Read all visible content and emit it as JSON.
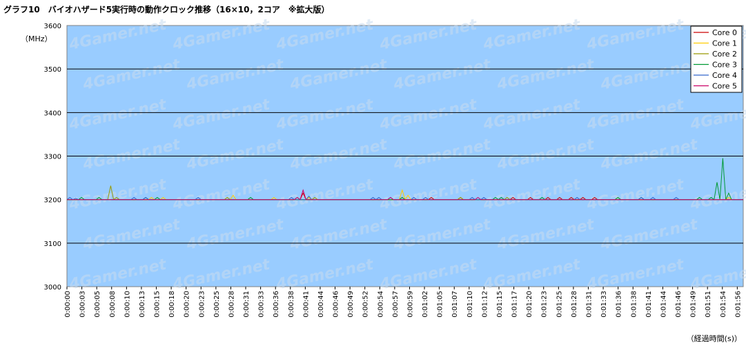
{
  "chart_data": {
    "type": "line",
    "title": "グラフ10　バイオハザード5実行時の動作クロック推移（16×10，2コア　※拡大版）",
    "ylabel": "（MHz）",
    "xlabel": "（経過時間(s)）",
    "ylim": [
      3000,
      3600
    ],
    "yticks": [
      3000,
      3100,
      3200,
      3300,
      3400,
      3500,
      3600
    ],
    "xticks": [
      "0:00:00",
      "0:00:03",
      "0:00:05",
      "0:00:08",
      "0:00:10",
      "0:00:13",
      "0:00:15",
      "0:00:18",
      "0:00:20",
      "0:00:23",
      "0:00:25",
      "0:00:28",
      "0:00:31",
      "0:00:33",
      "0:00:36",
      "0:00:38",
      "0:00:41",
      "0:00:44",
      "0:00:46",
      "0:00:49",
      "0:00:52",
      "0:00:54",
      "0:00:57",
      "0:00:59",
      "0:01:02",
      "0:01:05",
      "0:01:07",
      "0:01:10",
      "0:01:12",
      "0:01:15",
      "0:01:17",
      "0:01:20",
      "0:01:23",
      "0:01:25",
      "0:01:28",
      "0:01:31",
      "0:01:33",
      "0:01:36",
      "0:01:38",
      "0:01:41",
      "0:01:44",
      "0:01:46",
      "0:01:49",
      "0:01:51",
      "0:01:54",
      "0:01:56"
    ],
    "x_seconds_max": 116,
    "grid": true,
    "legend": "top-right",
    "plot_bg": "#99ccff",
    "watermark": "4Gamer.net",
    "series": [
      {
        "name": "Core 0",
        "color": "#cc0000",
        "spikes": [
          [
            40.5,
            3215
          ],
          [
            41.5,
            3205
          ],
          [
            62.5,
            3205
          ],
          [
            67.5,
            3205
          ],
          [
            76.5,
            3205
          ],
          [
            79.5,
            3205
          ],
          [
            82.5,
            3205
          ],
          [
            84.5,
            3205
          ],
          [
            86.5,
            3205
          ],
          [
            88.5,
            3205
          ],
          [
            90.5,
            3205
          ]
        ]
      },
      {
        "name": "Core 1",
        "color": "#ffcc00",
        "spikes": [
          [
            14.5,
            3205
          ],
          [
            16.5,
            3205
          ],
          [
            28.5,
            3210
          ],
          [
            35.5,
            3205
          ],
          [
            41.5,
            3205
          ],
          [
            57.5,
            3222
          ],
          [
            58.5,
            3210
          ],
          [
            67.5,
            3205
          ],
          [
            94.5,
            3205
          ],
          [
            113.5,
            3205
          ]
        ]
      },
      {
        "name": "Core 2",
        "color": "#999900",
        "spikes": [
          [
            7.5,
            3232
          ],
          [
            8.5,
            3205
          ],
          [
            27.5,
            3205
          ],
          [
            39.5,
            3205
          ],
          [
            42.5,
            3205
          ],
          [
            57.5,
            3205
          ],
          [
            67.5,
            3205
          ],
          [
            75.5,
            3205
          ]
        ]
      },
      {
        "name": "Core 3",
        "color": "#009933",
        "spikes": [
          [
            2.5,
            3205
          ],
          [
            5.5,
            3205
          ],
          [
            13.5,
            3205
          ],
          [
            15.5,
            3205
          ],
          [
            31.5,
            3205
          ],
          [
            57.5,
            3205
          ],
          [
            73.5,
            3205
          ],
          [
            74.5,
            3205
          ],
          [
            81.5,
            3205
          ],
          [
            94.5,
            3205
          ],
          [
            98.5,
            3205
          ],
          [
            108.5,
            3205
          ],
          [
            110.5,
            3205
          ],
          [
            111.5,
            3240
          ],
          [
            112.5,
            3295
          ],
          [
            113.5,
            3215
          ]
        ]
      },
      {
        "name": "Core 4",
        "color": "#3366cc",
        "spikes": [
          [
            0.5,
            3205
          ],
          [
            1.5,
            3203
          ],
          [
            11.5,
            3205
          ],
          [
            13.5,
            3205
          ],
          [
            22.5,
            3205
          ],
          [
            38.5,
            3205
          ],
          [
            41.5,
            3208
          ],
          [
            52.5,
            3205
          ],
          [
            53.5,
            3205
          ],
          [
            55.5,
            3205
          ],
          [
            59.5,
            3205
          ],
          [
            61.5,
            3205
          ],
          [
            69.5,
            3205
          ],
          [
            71.5,
            3205
          ],
          [
            87.5,
            3205
          ],
          [
            98.5,
            3205
          ],
          [
            100.5,
            3205
          ],
          [
            104.5,
            3205
          ]
        ]
      },
      {
        "name": "Core 5",
        "color": "#cc0066",
        "spikes": [
          [
            39.5,
            3205
          ],
          [
            40.5,
            3222
          ],
          [
            55.5,
            3205
          ],
          [
            70.5,
            3205
          ]
        ]
      }
    ]
  }
}
